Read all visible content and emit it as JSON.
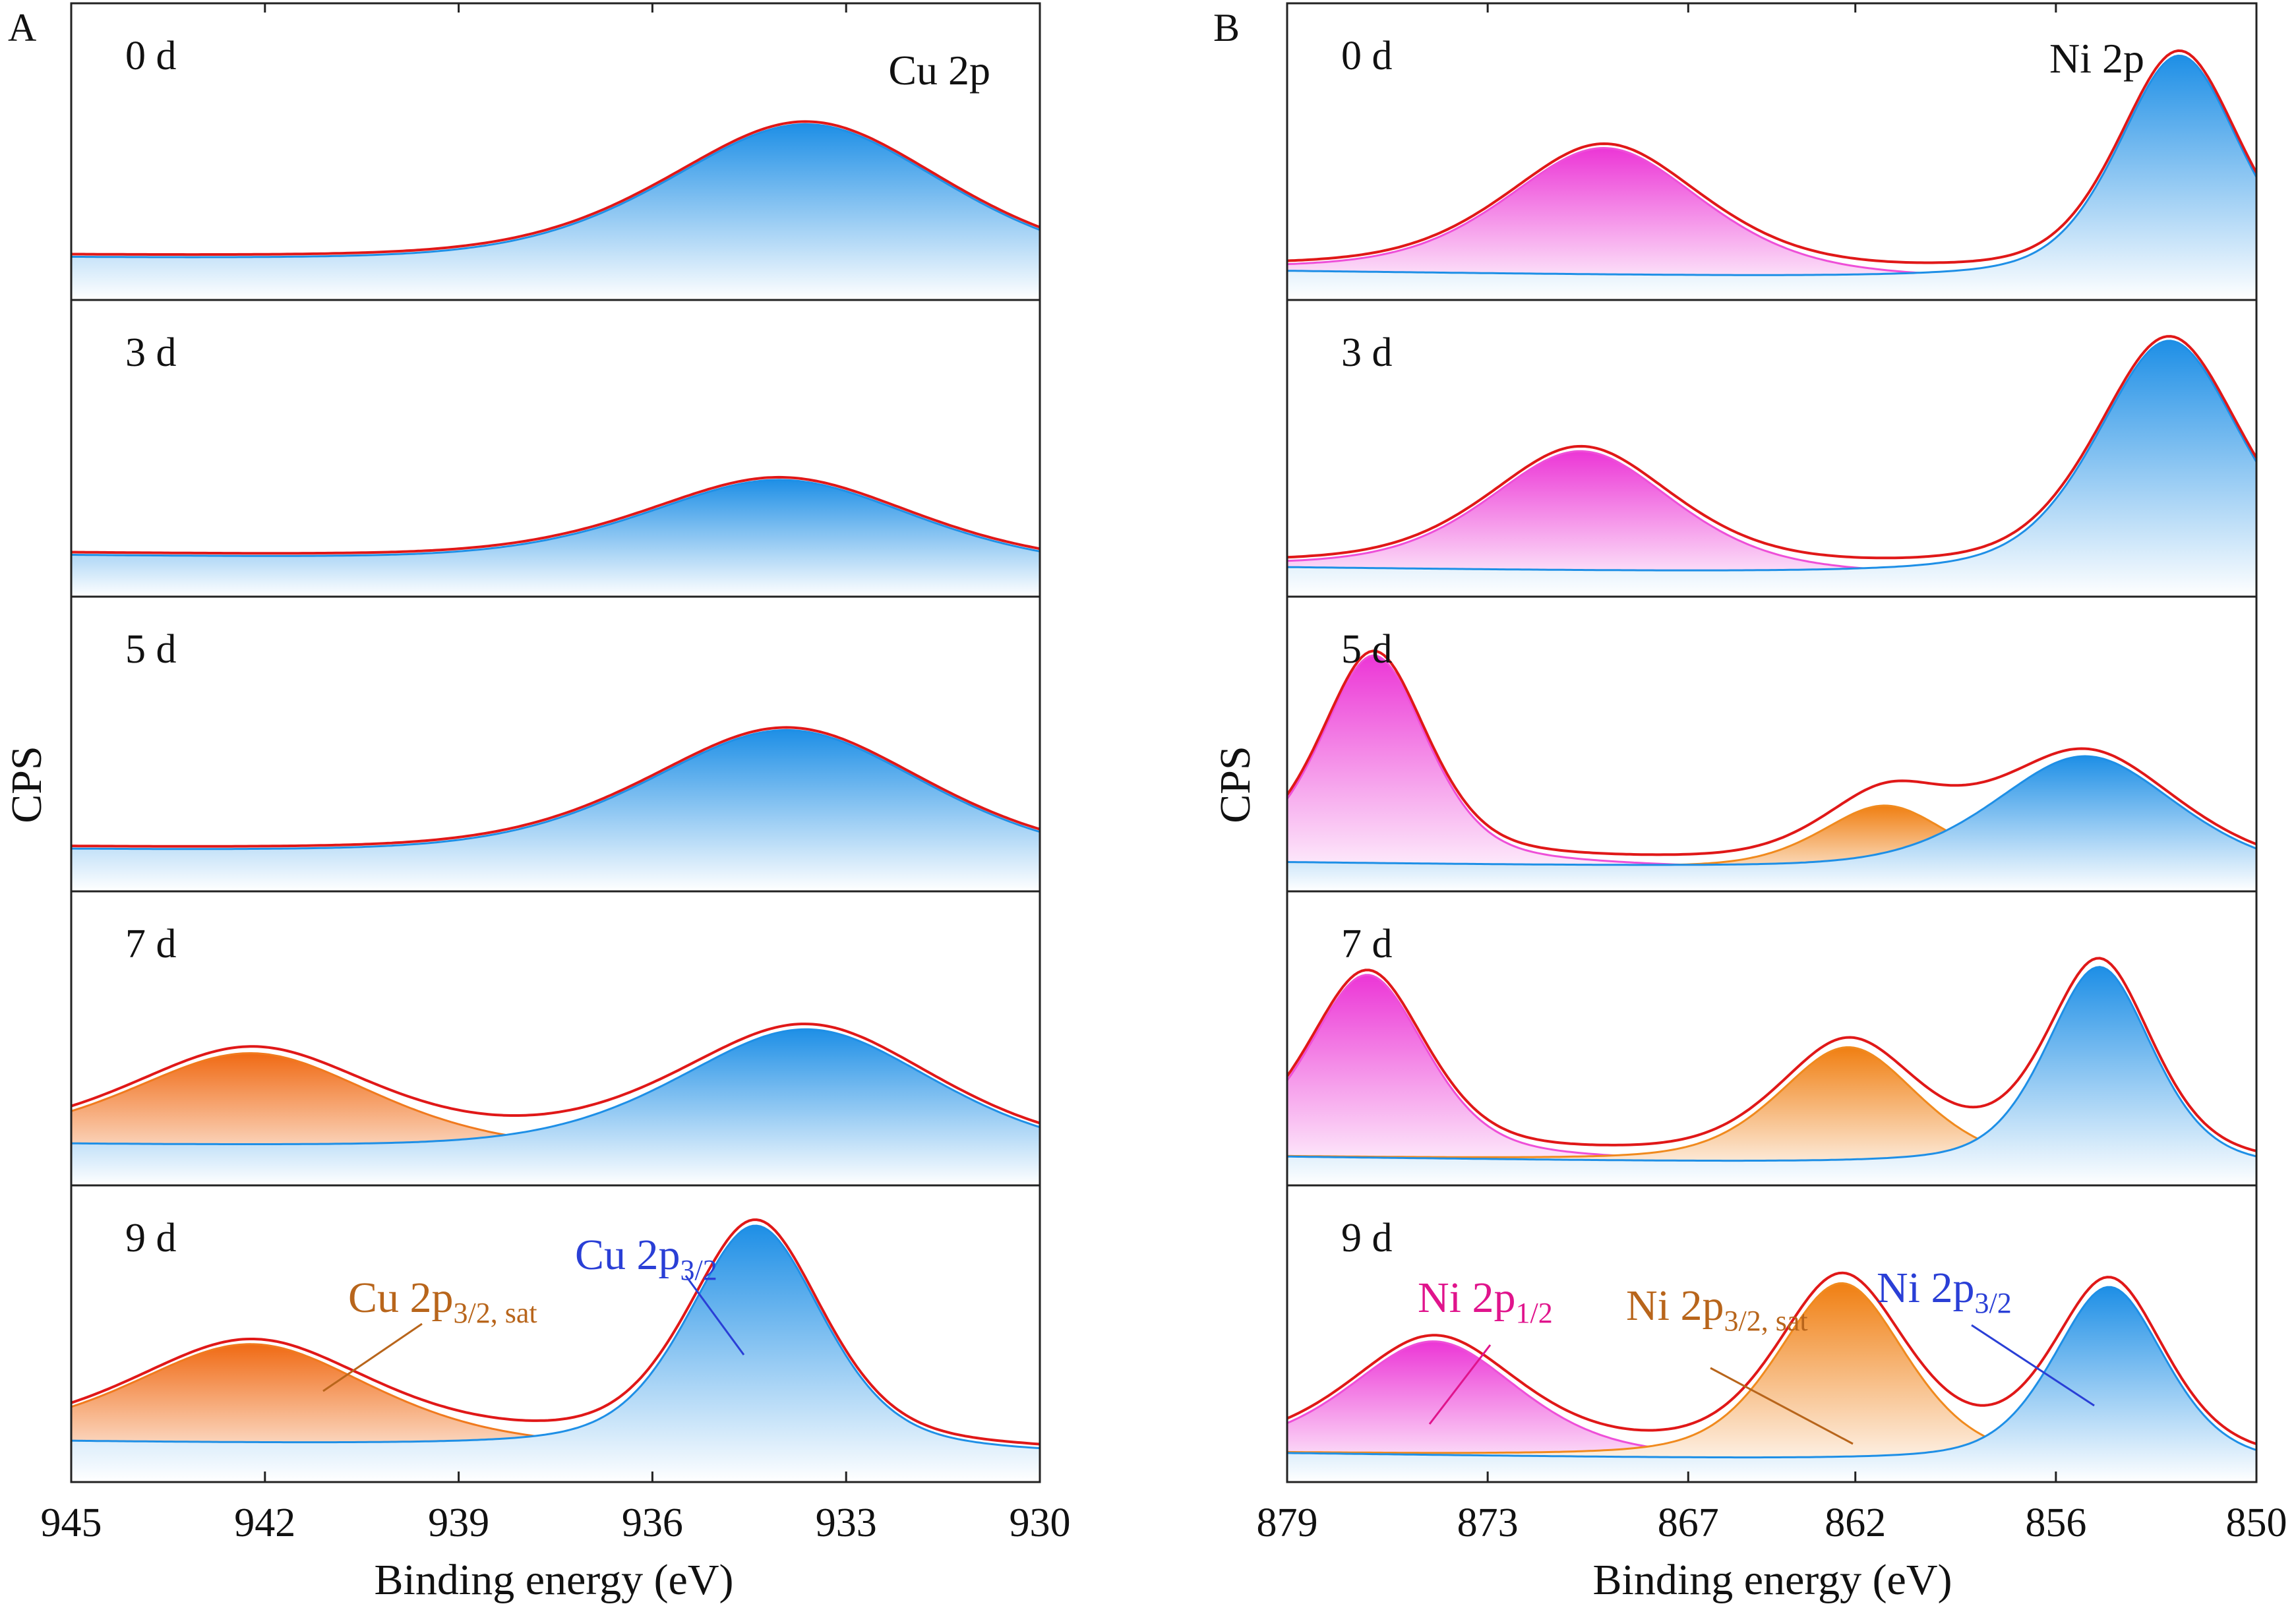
{
  "panels": [
    {
      "id": "A",
      "label": "A",
      "spectrum": "Cu 2p",
      "ylabel": "CPS",
      "xlabel": "Binding energy (eV)",
      "xlim": [
        945,
        930
      ],
      "xticks": [
        "945",
        "942",
        "939",
        "936",
        "933",
        "930"
      ],
      "days": [
        "0 d",
        "3 d",
        "5 d",
        "7 d",
        "9 d"
      ],
      "annotations": [
        {
          "base": "Cu 2p",
          "sub": "3/2, sat",
          "color": "#b8651b"
        },
        {
          "base": "Cu 2p",
          "sub": "3/2",
          "color": "#2a3fd6"
        }
      ]
    },
    {
      "id": "B",
      "label": "B",
      "spectrum": "Ni 2p",
      "ylabel": "CPS",
      "xlabel": "Binding energy (eV)",
      "xlim": [
        879,
        850
      ],
      "xticks": [
        "879",
        "873",
        "867",
        "862",
        "856",
        "850"
      ],
      "days": [
        "0 d",
        "3 d",
        "5 d",
        "7 d",
        "9 d"
      ],
      "annotations": [
        {
          "base": "Ni 2p",
          "sub": "1/2",
          "color": "#e0148c"
        },
        {
          "base": "Ni 2p",
          "sub": "3/2, sat",
          "color": "#b8651b"
        },
        {
          "base": "Ni 2p",
          "sub": "3/2",
          "color": "#2a3fd6"
        }
      ]
    }
  ],
  "colors": {
    "envelope": "#e01818",
    "cu_2p32": "#1e8fe6",
    "cu_sat": "#f07a1e",
    "ni_2p12": "#ee4fd8",
    "ni_sat": "#f08a1e",
    "ni_2p32": "#1e8fe6",
    "background_line": "#d07ad0"
  },
  "chart_data": [
    {
      "type": "area",
      "panel": "A",
      "title": "Cu 2p",
      "xlabel": "Binding energy (eV)",
      "ylabel": "CPS",
      "xlim": [
        945,
        930
      ],
      "x_reversed": true,
      "y_units": "relative",
      "stack": [
        {
          "label": "0 d",
          "baseline": 0.05,
          "peaks": [
            {
              "name": "Cu 2p3/2",
              "center": 933.6,
              "height": 0.64,
              "fwhm": 5.2
            }
          ]
        },
        {
          "label": "3 d",
          "baseline": 0.05,
          "peaks": [
            {
              "name": "Cu 2p3/2",
              "center": 934.0,
              "height": 0.38,
              "fwhm": 5.0
            }
          ]
        },
        {
          "label": "5 d",
          "baseline": 0.05,
          "peaks": [
            {
              "name": "Cu 2p3/2",
              "center": 933.9,
              "height": 0.58,
              "fwhm": 5.2
            }
          ]
        },
        {
          "label": "7 d",
          "baseline": 0.05,
          "peaks": [
            {
              "name": "Cu 2p3/2, sat",
              "center": 942.2,
              "height": 0.42,
              "fwhm": 4.5
            },
            {
              "name": "Cu 2p3/2",
              "center": 933.6,
              "height": 0.56,
              "fwhm": 4.8
            }
          ]
        },
        {
          "label": "9 d",
          "baseline": 0.05,
          "peaks": [
            {
              "name": "Cu 2p3/2, sat",
              "center": 942.2,
              "height": 0.44,
              "fwhm": 4.4
            },
            {
              "name": "Cu 2p3/2",
              "center": 934.4,
              "height": 0.99,
              "fwhm": 2.5
            }
          ]
        }
      ]
    },
    {
      "type": "area",
      "panel": "B",
      "title": "Ni 2p",
      "xlabel": "Binding energy (eV)",
      "ylabel": "CPS",
      "xlim": [
        879,
        850
      ],
      "x_reversed": true,
      "y_units": "relative",
      "stack": [
        {
          "label": "0 d",
          "baseline": 0.0,
          "peaks": [
            {
              "name": "Ni 2p1/2",
              "center": 869.5,
              "height": 0.56,
              "fwhm": 7.0
            },
            {
              "name": "Ni 2p3/2",
              "center": 852.3,
              "height": 1.0,
              "fwhm": 4.4
            }
          ]
        },
        {
          "label": "3 d",
          "baseline": 0.0,
          "peaks": [
            {
              "name": "Ni 2p1/2",
              "center": 870.2,
              "height": 0.53,
              "fwhm": 6.6
            },
            {
              "name": "Ni 2p3/2",
              "center": 852.6,
              "height": 1.05,
              "fwhm": 5.2
            }
          ]
        },
        {
          "label": "5 d",
          "baseline": 0.0,
          "peaks": [
            {
              "name": "Ni 2p1/2",
              "center": 876.4,
              "height": 0.92,
              "fwhm": 3.8
            },
            {
              "name": "Ni 2p3/2, sat",
              "center": 861.1,
              "height": 0.29,
              "fwhm": 4.6
            },
            {
              "name": "Ni 2p3/2",
              "center": 855.1,
              "height": 0.52,
              "fwhm": 6.6
            }
          ]
        },
        {
          "label": "7 d",
          "baseline": 0.0,
          "peaks": [
            {
              "name": "Ni 2p1/2",
              "center": 876.6,
              "height": 0.81,
              "fwhm": 4.2
            },
            {
              "name": "Ni 2p3/2, sat",
              "center": 862.2,
              "height": 0.52,
              "fwhm": 5.0
            },
            {
              "name": "Ni 2p3/2",
              "center": 854.7,
              "height": 0.89,
              "fwhm": 3.8
            }
          ]
        },
        {
          "label": "9 d",
          "baseline": 0.0,
          "peaks": [
            {
              "name": "Ni 2p1/2",
              "center": 874.6,
              "height": 0.5,
              "fwhm": 6.0
            },
            {
              "name": "Ni 2p3/2, sat",
              "center": 862.4,
              "height": 0.78,
              "fwhm": 4.6
            },
            {
              "name": "Ni 2p3/2",
              "center": 854.4,
              "height": 0.78,
              "fwhm": 4.0
            }
          ]
        }
      ]
    }
  ]
}
